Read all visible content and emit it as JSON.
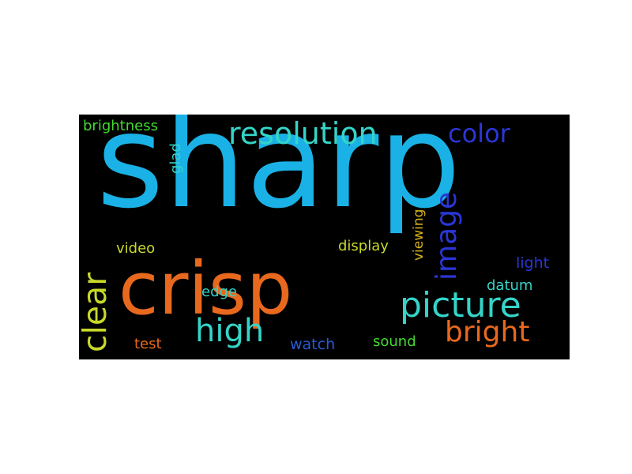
{
  "colors": {
    "background": "#000000",
    "sky_blue": "#1ab2e6",
    "orange": "#e8691e",
    "teal": "#35d4c8",
    "blue": "#2a36d6",
    "lime": "#c8d82a",
    "green": "#42d930",
    "gold": "#d6b21f"
  },
  "words": {
    "sharp": "sharp",
    "crisp": "crisp",
    "resolution": "resolution",
    "picture": "picture",
    "image": "image",
    "clear": "clear",
    "high": "high",
    "bright": "bright",
    "color": "color",
    "brightness": "brightness",
    "glad": "glad",
    "viewing": "viewing",
    "display": "display",
    "video": "video",
    "edge": "edge",
    "light": "light",
    "datum": "datum",
    "test": "test",
    "watch": "watch",
    "sound": "sound"
  },
  "word_colors": {
    "sharp": "#1ab2e6",
    "crisp": "#e8691e",
    "resolution": "#35d4c8",
    "picture": "#35d4c8",
    "image": "#2a36d6",
    "clear": "#c8d82a",
    "high": "#35d4c8",
    "bright": "#e8691e",
    "color": "#2a36d6",
    "brightness": "#42d930",
    "glad": "#35d4c8",
    "viewing": "#d6b21f",
    "display": "#c8d82a",
    "video": "#c8d82a",
    "edge": "#35d4c8",
    "light": "#2a36d6",
    "datum": "#35d4c8",
    "test": "#e8691e",
    "watch": "#2a5ad6",
    "sound": "#42d930"
  }
}
